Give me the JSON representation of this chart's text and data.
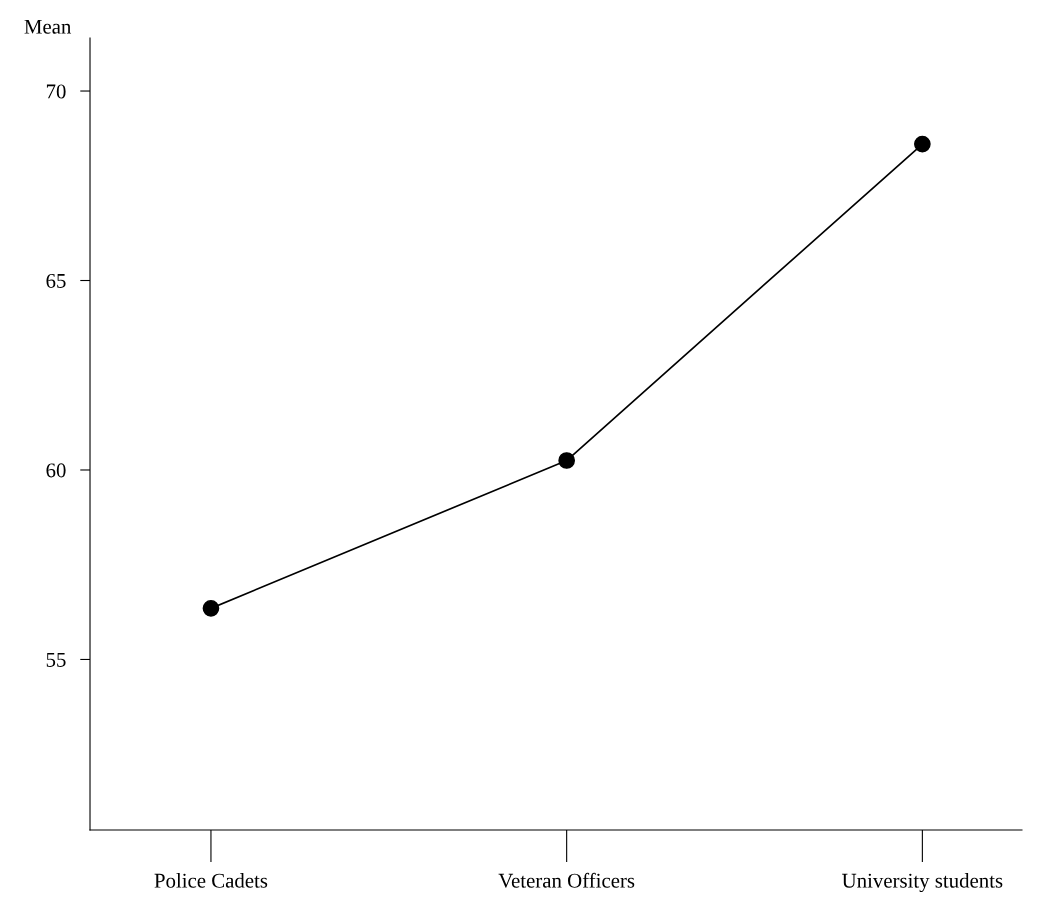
{
  "chart_data": {
    "type": "line",
    "ylabel": "Mean",
    "categories": [
      "Police Cadets",
      "Veteran Officers",
      "University students"
    ],
    "series": [
      {
        "color": "#000000",
        "values": [
          56.35,
          60.25,
          68.6
        ]
      }
    ],
    "ylim": [
      50.5,
      71.4
    ],
    "yticks": [
      55,
      60,
      65,
      70
    ],
    "marker": "circle",
    "line_style": "solid",
    "grid": false,
    "legend": false
  }
}
